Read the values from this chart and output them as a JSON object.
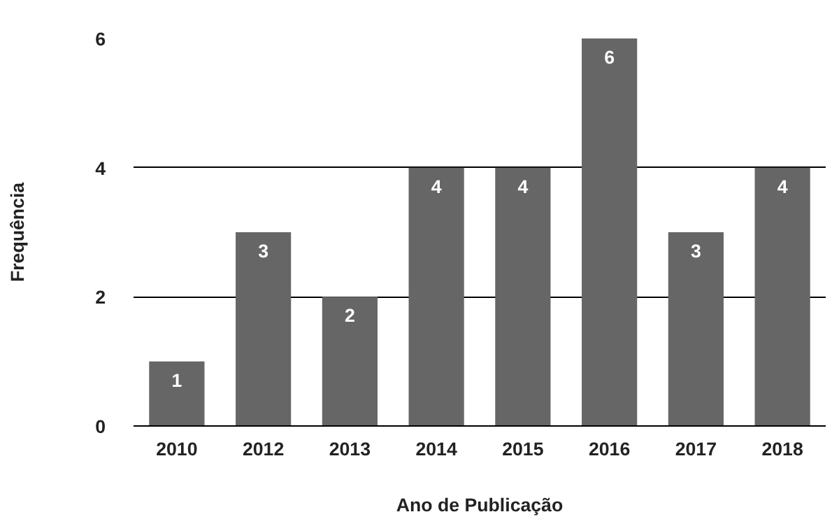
{
  "chart_data": {
    "type": "bar",
    "xlabel": "Ano de Publicação",
    "ylabel": "Frequência",
    "categories": [
      "2010",
      "2012",
      "2013",
      "2014",
      "2015",
      "2016",
      "2017",
      "2018"
    ],
    "values": [
      1,
      3,
      2,
      4,
      4,
      6,
      3,
      4
    ],
    "color": "#666666",
    "ylim": [
      0,
      6
    ],
    "yticks": [
      0,
      2,
      4,
      6
    ],
    "grid": "y",
    "data_labels": true
  }
}
